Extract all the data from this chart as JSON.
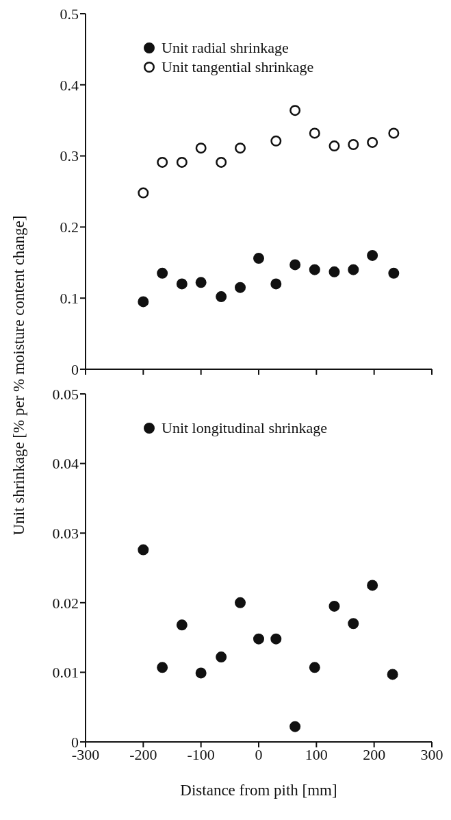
{
  "chart_data": [
    {
      "type": "scatter",
      "ylabel": "Unit shrinkage [% per % moisture content change]",
      "xlim": [
        -300,
        300
      ],
      "xticks": [
        -300,
        -200,
        -100,
        0,
        100,
        200,
        300
      ],
      "ylim": [
        0,
        0.5
      ],
      "yticks": [
        0,
        0.1,
        0.2,
        0.3,
        0.4,
        0.5
      ],
      "tick_labels": "y",
      "legend": "top left",
      "marker": "circle",
      "series": [
        {
          "name": "Unit radial shrinkage",
          "color": "#111111",
          "x": [
            -200,
            -167,
            -133,
            -100,
            -65,
            -32,
            0,
            30,
            63,
            97,
            131,
            164,
            197,
            234
          ],
          "values": [
            0.095,
            0.135,
            0.12,
            0.122,
            0.102,
            0.115,
            0.156,
            0.12,
            0.147,
            0.14,
            0.137,
            0.14,
            0.16,
            0.135
          ]
        },
        {
          "name": "Unit tangential shrinkage",
          "color": "#ffffff",
          "x": [
            -200,
            -167,
            -133,
            -100,
            -65,
            -32,
            30,
            63,
            97,
            131,
            164,
            197,
            234
          ],
          "values": [
            0.248,
            0.291,
            0.291,
            0.311,
            0.291,
            0.311,
            0.321,
            0.364,
            0.332,
            0.314,
            0.316,
            0.319,
            0.332
          ]
        }
      ]
    },
    {
      "type": "scatter",
      "xlabel": "Distance from pith [mm]",
      "xlim": [
        -300,
        300
      ],
      "xticks": [
        -300,
        -200,
        -100,
        0,
        100,
        200,
        300
      ],
      "ylim": [
        0,
        0.05
      ],
      "yticks": [
        0,
        0.01,
        0.02,
        0.03,
        0.04,
        0.05
      ],
      "legend": "top left",
      "marker": "circle",
      "series": [
        {
          "name": "Unit longitudinal shrinkage",
          "color": "#111111",
          "x": [
            -200,
            -167,
            -133,
            -100,
            -65,
            -32,
            0,
            30,
            63,
            97,
            131,
            164,
            197,
            232
          ],
          "values": [
            0.0276,
            0.0107,
            0.0168,
            0.0099,
            0.0122,
            0.02,
            0.0148,
            0.0148,
            0.0022,
            0.0107,
            0.0195,
            0.017,
            0.0225,
            0.0097
          ]
        }
      ]
    }
  ]
}
